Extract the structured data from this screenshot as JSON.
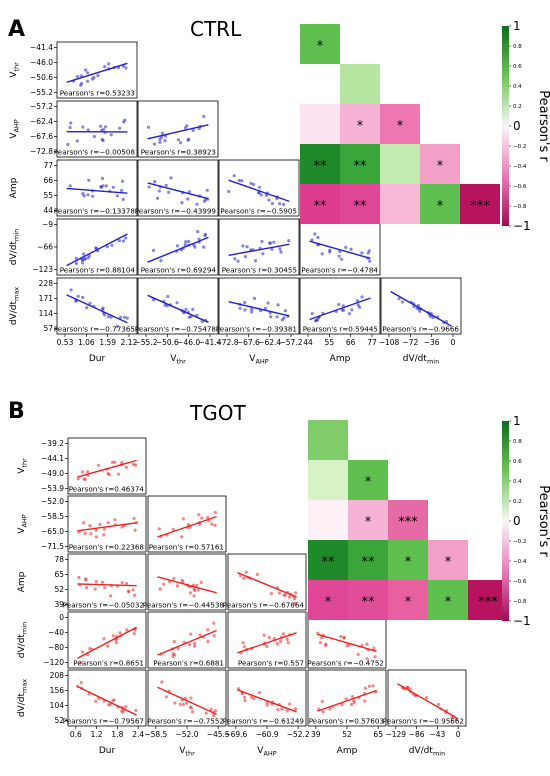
{
  "chart_data": [
    {
      "panel_letter": "A",
      "title": "CTRL",
      "type": "scatter",
      "color": "#2222cc",
      "variables": [
        "Dur",
        "V_thr",
        "V_AHP",
        "Amp",
        "dV/dt_min",
        "dV/dt_max"
      ],
      "x_axis_labels": [
        "Dur",
        "Vthr",
        "VAHP",
        "Amp",
        "dV/dtmin"
      ],
      "x_axis_label_subscripts": [
        "",
        "thr",
        "AHP",
        "",
        "min"
      ],
      "x_axis_label_bases": [
        "Dur",
        "V",
        "V",
        "Amp",
        "dV/dt"
      ],
      "y_axis_label_bases": [
        "V",
        "V",
        "Amp",
        "dV/dt",
        "dV/dt"
      ],
      "y_axis_label_subscripts": [
        "thr",
        "AHP",
        "",
        "min",
        "max"
      ],
      "x_ticks": [
        [
          "0.53",
          "1.06",
          "1.59",
          "2.12"
        ],
        [
          "−55.2",
          "−50.6",
          "−46.0",
          "−41.4"
        ],
        [
          "−72.8",
          "−67.6",
          "−62.4",
          "−57.2"
        ],
        [
          "44",
          "55",
          "66",
          "77"
        ],
        [
          "−108",
          "−72",
          "−36",
          "0"
        ]
      ],
      "y_ticks": [
        [
          "−41.4",
          "−46.0",
          "−50.6",
          "−55.2"
        ],
        [
          "−57.2",
          "−62.4",
          "−67.6",
          "−72.8"
        ],
        [
          "77",
          "66",
          "55",
          "44"
        ],
        [
          "−9",
          "−66",
          "−123"
        ],
        [
          "228",
          "171",
          "114",
          "57"
        ]
      ],
      "pearson_r": [
        [
          "0.53233"
        ],
        [
          "−0.00508",
          "0.38923"
        ],
        [
          "−0.13378",
          "−0.43999",
          "−0.5905"
        ],
        [
          "0.88104",
          "0.69294",
          "0.30455",
          "−0.4784"
        ],
        [
          "−0.77365",
          "−0.75478",
          "−0.39381",
          "0.59445",
          "−0.9666"
        ]
      ],
      "pearson_label": "Pearson's r=",
      "heatmap_cells": [
        {
          "row": 0,
          "col": 0,
          "color": "#5fbf4f",
          "mark": "*"
        },
        {
          "row": 1,
          "col": 1,
          "color": "#b5e5a0",
          "mark": ""
        },
        {
          "row": 2,
          "col": 0,
          "color": "#fbe3f0",
          "mark": ""
        },
        {
          "row": 2,
          "col": 1,
          "color": "#f6b3d5",
          "mark": "*"
        },
        {
          "row": 2,
          "col": 2,
          "color": "#ee77b2",
          "mark": "*"
        },
        {
          "row": 3,
          "col": 0,
          "color": "#1f8a2a",
          "mark": "**"
        },
        {
          "row": 3,
          "col": 1,
          "color": "#3aa63a",
          "mark": "**"
        },
        {
          "row": 3,
          "col": 2,
          "color": "#c4ebb0",
          "mark": ""
        },
        {
          "row": 3,
          "col": 3,
          "color": "#f3a0c8",
          "mark": "*"
        },
        {
          "row": 4,
          "col": 0,
          "color": "#de3d8f",
          "mark": "**"
        },
        {
          "row": 4,
          "col": 1,
          "color": "#e04696",
          "mark": "**"
        },
        {
          "row": 4,
          "col": 2,
          "color": "#f7b8d7",
          "mark": ""
        },
        {
          "row": 4,
          "col": 3,
          "color": "#5fbf4f",
          "mark": "*"
        },
        {
          "row": 4,
          "col": 4,
          "color": "#b8135e",
          "mark": "***"
        }
      ],
      "colorbar_label": "Pearson's r",
      "colorbar_ticks": [
        "1",
        "0.8",
        "0.6",
        "0.4",
        "0.2",
        "0",
        "−0.2",
        "−0.4",
        "−0.6",
        "−0.8",
        "−1"
      ]
    },
    {
      "panel_letter": "B",
      "title": "TGOT",
      "type": "scatter",
      "color": "#ee2222",
      "variables": [
        "Dur",
        "V_thr",
        "V_AHP",
        "Amp",
        "dV/dt_min",
        "dV/dt_max"
      ],
      "x_axis_labels": [
        "Dur",
        "Vthr",
        "VAHP",
        "Amp",
        "dV/dtmin"
      ],
      "x_axis_label_subscripts": [
        "",
        "thr",
        "AHP",
        "",
        "min"
      ],
      "x_axis_label_bases": [
        "Dur",
        "V",
        "V",
        "Amp",
        "dV/dt"
      ],
      "y_axis_label_bases": [
        "V",
        "V",
        "Amp",
        "dV/dt",
        "dV/dt"
      ],
      "y_axis_label_subscripts": [
        "thr",
        "AHP",
        "",
        "min",
        "max"
      ],
      "x_ticks": [
        [
          "0.6",
          "1.2",
          "1.8",
          "2.4"
        ],
        [
          "−58.5",
          "−52.0",
          "−45.5"
        ],
        [
          "−69.6",
          "−60.9",
          "−52.2"
        ],
        [
          "39",
          "52",
          "65"
        ],
        [
          "−129",
          "−86",
          "−43",
          "0"
        ]
      ],
      "y_ticks": [
        [
          "−39.2",
          "−44.1",
          "−49.0",
          "−53.9"
        ],
        [
          "−52.0",
          "−58.5",
          "−65.0",
          "−71.5"
        ],
        [
          "78",
          "65",
          "52",
          "39"
        ],
        [
          "0",
          "−40",
          "−80",
          "−120"
        ],
        [
          "208",
          "156",
          "104",
          "52"
        ]
      ],
      "pearson_r": [
        [
          "0.46374"
        ],
        [
          "0.22368",
          "0.57161"
        ],
        [
          "−0.05032",
          "−0.44538",
          "−0.67864"
        ],
        [
          "0.8651",
          "0.6881",
          "0.557",
          "−0.4752"
        ],
        [
          "−0.79567",
          "−0.7552",
          "−0.61249",
          "0.57603",
          "−0.95662"
        ]
      ],
      "pearson_label": "Pearson's r=",
      "heatmap_cells": [
        {
          "row": 0,
          "col": 0,
          "color": "#80cc6a",
          "mark": ""
        },
        {
          "row": 1,
          "col": 0,
          "color": "#d8f2c8",
          "mark": ""
        },
        {
          "row": 1,
          "col": 1,
          "color": "#5fbf4f",
          "mark": "*"
        },
        {
          "row": 2,
          "col": 0,
          "color": "#fdf0f6",
          "mark": ""
        },
        {
          "row": 2,
          "col": 1,
          "color": "#f6b3d5",
          "mark": "*"
        },
        {
          "row": 2,
          "col": 2,
          "color": "#e66aa6",
          "mark": "***"
        },
        {
          "row": 3,
          "col": 0,
          "color": "#1f8a2a",
          "mark": "**"
        },
        {
          "row": 3,
          "col": 1,
          "color": "#3aa63a",
          "mark": "**"
        },
        {
          "row": 3,
          "col": 2,
          "color": "#5fbf4f",
          "mark": "*"
        },
        {
          "row": 3,
          "col": 3,
          "color": "#f3a0c8",
          "mark": "*"
        },
        {
          "row": 4,
          "col": 0,
          "color": "#e04696",
          "mark": "*"
        },
        {
          "row": 4,
          "col": 1,
          "color": "#e24d9a",
          "mark": "**"
        },
        {
          "row": 4,
          "col": 2,
          "color": "#e8609f",
          "mark": "*"
        },
        {
          "row": 4,
          "col": 3,
          "color": "#5fbf4f",
          "mark": "*"
        },
        {
          "row": 4,
          "col": 4,
          "color": "#b8135e",
          "mark": "***"
        }
      ],
      "colorbar_label": "Pearson's r",
      "colorbar_ticks": [
        "1",
        "0.8",
        "0.6",
        "0.4",
        "0.2",
        "0",
        "−0.2",
        "−0.4",
        "−0.6",
        "−0.8",
        "−1"
      ]
    }
  ]
}
